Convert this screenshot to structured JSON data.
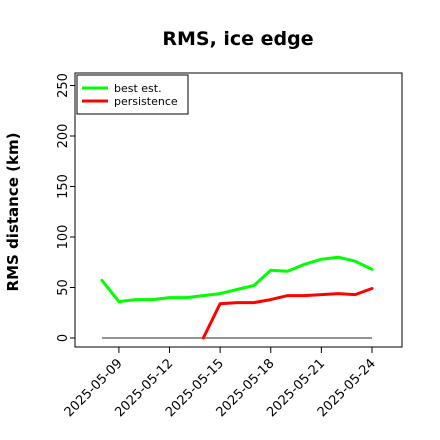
{
  "chart_data": {
    "type": "line",
    "title": "RMS, ice edge",
    "xlabel": "",
    "ylabel": "RMS distance (km)",
    "ylim": [
      0,
      260
    ],
    "yticks": [
      0,
      50,
      100,
      150,
      200,
      250
    ],
    "x": [
      "2025-05-08",
      "2025-05-09",
      "2025-05-10",
      "2025-05-11",
      "2025-05-12",
      "2025-05-13",
      "2025-05-14",
      "2025-05-15",
      "2025-05-16",
      "2025-05-17",
      "2025-05-18",
      "2025-05-19",
      "2025-05-20",
      "2025-05-21",
      "2025-05-22",
      "2025-05-23",
      "2025-05-24"
    ],
    "xticks": [
      "2025-05-09",
      "2025-05-12",
      "2025-05-15",
      "2025-05-18",
      "2025-05-21",
      "2025-05-24"
    ],
    "grid": false,
    "legend_position": "top-left",
    "series": [
      {
        "name": "best est.",
        "color": "#00ff00",
        "values": [
          57,
          36,
          38,
          38,
          40,
          40,
          42,
          44,
          48,
          52,
          67,
          66,
          73,
          78,
          80,
          76,
          68
        ]
      },
      {
        "name": "persistence",
        "color": "#ff0000",
        "values": [
          null,
          null,
          null,
          null,
          null,
          null,
          0,
          34,
          35,
          35,
          38,
          42,
          42,
          43,
          44,
          43,
          49
        ]
      }
    ],
    "baseline": {
      "value": 0,
      "color": "#555555"
    }
  }
}
